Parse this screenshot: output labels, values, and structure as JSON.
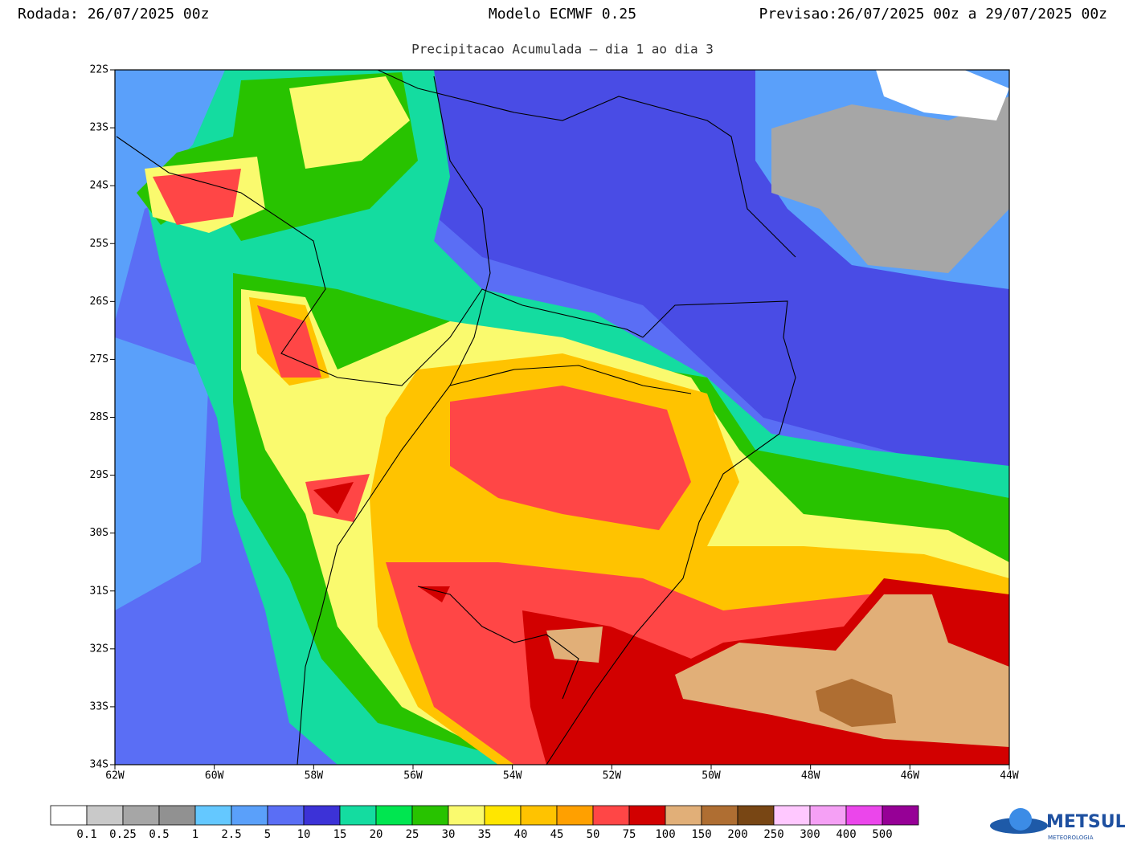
{
  "header": {
    "run": "Rodada: 26/07/2025 00z",
    "model": "Modelo ECMWF 0.25",
    "forecast": "Previsao:26/07/2025 00z a 29/07/2025 00z",
    "subtitle": "Precipitacao Acumulada – dia 1 ao dia 3"
  },
  "map": {
    "lat_labels": [
      "22S",
      "23S",
      "24S",
      "25S",
      "26S",
      "27S",
      "28S",
      "29S",
      "30S",
      "31S",
      "32S",
      "33S",
      "34S"
    ],
    "lon_labels": [
      "62W",
      "60W",
      "58W",
      "56W",
      "54W",
      "52W",
      "50W",
      "48W",
      "46W",
      "44W"
    ]
  },
  "legend": {
    "colors": [
      "#ffffff",
      "#c9c9c9",
      "#a6a6a6",
      "#919191",
      "#64c8ff",
      "#5aa0fa",
      "#5a6ef5",
      "#3c32d7",
      "#14dca0",
      "#00e650",
      "#28c300",
      "#fafa6e",
      "#ffe600",
      "#ffc300",
      "#ffa000",
      "#ff4646",
      "#d20000",
      "#e1af78",
      "#af6e32",
      "#784614",
      "#ffc8ff",
      "#f5a0f5",
      "#eb46eb",
      "#960096"
    ],
    "labels": [
      0.1,
      0.25,
      0.5,
      1,
      2.5,
      5,
      10,
      15,
      20,
      25,
      30,
      35,
      40,
      45,
      50,
      75,
      100,
      150,
      200,
      250,
      300,
      400,
      500
    ]
  },
  "logo": {
    "name": "METSUL",
    "tagline": "METEOROLOGIA"
  }
}
